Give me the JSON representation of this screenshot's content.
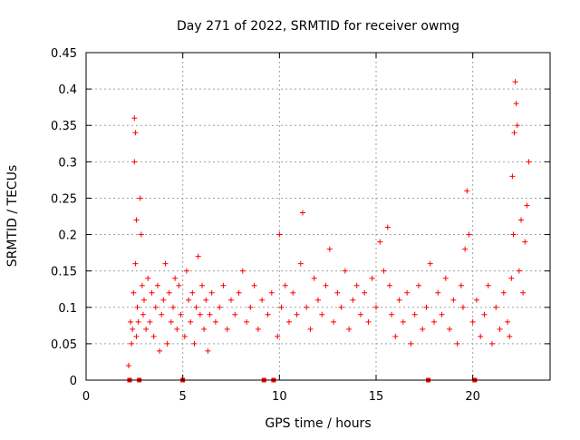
{
  "chart_data": {
    "type": "scatter",
    "title": "Day 271 of 2022, SRMTID for receiver owmg",
    "xlabel": "GPS time / hours",
    "ylabel": "SRMTID / TECUs",
    "xlim": [
      0,
      24
    ],
    "ylim": [
      0,
      0.45
    ],
    "xticks": [
      0,
      5,
      10,
      15,
      20
    ],
    "xtick_labels": [
      "0",
      "5",
      "10",
      "15",
      "20"
    ],
    "yticks": [
      0,
      0.05,
      0.1,
      0.15,
      0.2,
      0.25,
      0.3,
      0.35,
      0.4,
      0.45
    ],
    "ytick_labels": [
      "0",
      "0.05",
      "0.1",
      "0.15",
      "0.2",
      "0.25",
      "0.3",
      "0.35",
      "0.4",
      "0.45"
    ],
    "grid": true,
    "marker": "plus",
    "color": "#ff0000",
    "gap_markers_x": [
      2.25,
      2.75,
      5.0,
      9.2,
      9.7,
      17.7,
      20.1
    ],
    "series": [
      {
        "name": "SRMTID",
        "x": [
          2.2,
          2.3,
          2.35,
          2.4,
          2.45,
          2.5,
          2.5,
          2.55,
          2.55,
          2.6,
          2.6,
          2.65,
          2.7,
          2.8,
          2.85,
          2.9,
          2.95,
          3.0,
          3.1,
          3.2,
          3.3,
          3.4,
          3.5,
          3.6,
          3.7,
          3.8,
          3.9,
          4.0,
          4.1,
          4.2,
          4.3,
          4.4,
          4.5,
          4.6,
          4.7,
          4.8,
          4.9,
          5.1,
          5.2,
          5.3,
          5.4,
          5.5,
          5.6,
          5.7,
          5.8,
          5.9,
          6.0,
          6.1,
          6.2,
          6.3,
          6.4,
          6.5,
          6.7,
          6.9,
          7.1,
          7.3,
          7.5,
          7.7,
          7.9,
          8.1,
          8.3,
          8.5,
          8.7,
          8.9,
          9.1,
          9.4,
          9.6,
          9.9,
          10.0,
          10.1,
          10.3,
          10.5,
          10.7,
          10.9,
          11.1,
          11.2,
          11.4,
          11.6,
          11.8,
          12.0,
          12.2,
          12.4,
          12.6,
          12.8,
          13.0,
          13.2,
          13.4,
          13.6,
          13.8,
          14.0,
          14.2,
          14.4,
          14.6,
          14.8,
          15.0,
          15.2,
          15.4,
          15.6,
          15.7,
          15.8,
          16.0,
          16.2,
          16.4,
          16.6,
          16.8,
          17.0,
          17.2,
          17.4,
          17.6,
          17.8,
          18.0,
          18.2,
          18.4,
          18.6,
          18.8,
          19.0,
          19.2,
          19.4,
          19.5,
          19.6,
          19.7,
          19.8,
          20.0,
          20.2,
          20.4,
          20.6,
          20.8,
          21.0,
          21.2,
          21.4,
          21.6,
          21.8,
          21.9,
          22.0,
          22.05,
          22.1,
          22.15,
          22.2,
          22.25,
          22.3,
          22.4,
          22.5,
          22.6,
          22.7,
          22.8,
          22.9
        ],
        "y": [
          0.02,
          0.08,
          0.05,
          0.07,
          0.12,
          0.36,
          0.3,
          0.34,
          0.16,
          0.06,
          0.22,
          0.1,
          0.08,
          0.25,
          0.2,
          0.13,
          0.09,
          0.11,
          0.07,
          0.14,
          0.08,
          0.12,
          0.06,
          0.1,
          0.13,
          0.04,
          0.09,
          0.11,
          0.16,
          0.05,
          0.12,
          0.08,
          0.1,
          0.14,
          0.07,
          0.13,
          0.09,
          0.06,
          0.15,
          0.11,
          0.08,
          0.12,
          0.05,
          0.1,
          0.17,
          0.09,
          0.13,
          0.07,
          0.11,
          0.04,
          0.09,
          0.12,
          0.08,
          0.1,
          0.13,
          0.07,
          0.11,
          0.09,
          0.12,
          0.15,
          0.08,
          0.1,
          0.13,
          0.07,
          0.11,
          0.09,
          0.12,
          0.06,
          0.2,
          0.1,
          0.13,
          0.08,
          0.12,
          0.09,
          0.16,
          0.23,
          0.1,
          0.07,
          0.14,
          0.11,
          0.09,
          0.13,
          0.18,
          0.08,
          0.12,
          0.1,
          0.15,
          0.07,
          0.11,
          0.13,
          0.09,
          0.12,
          0.08,
          0.14,
          0.1,
          0.19,
          0.15,
          0.21,
          0.13,
          0.09,
          0.06,
          0.11,
          0.08,
          0.12,
          0.05,
          0.09,
          0.13,
          0.07,
          0.1,
          0.16,
          0.08,
          0.12,
          0.09,
          0.14,
          0.07,
          0.11,
          0.05,
          0.13,
          0.1,
          0.18,
          0.26,
          0.2,
          0.08,
          0.11,
          0.06,
          0.09,
          0.13,
          0.05,
          0.1,
          0.07,
          0.12,
          0.08,
          0.06,
          0.14,
          0.28,
          0.2,
          0.34,
          0.41,
          0.38,
          0.35,
          0.15,
          0.22,
          0.12,
          0.19,
          0.24,
          0.3
        ]
      }
    ]
  }
}
